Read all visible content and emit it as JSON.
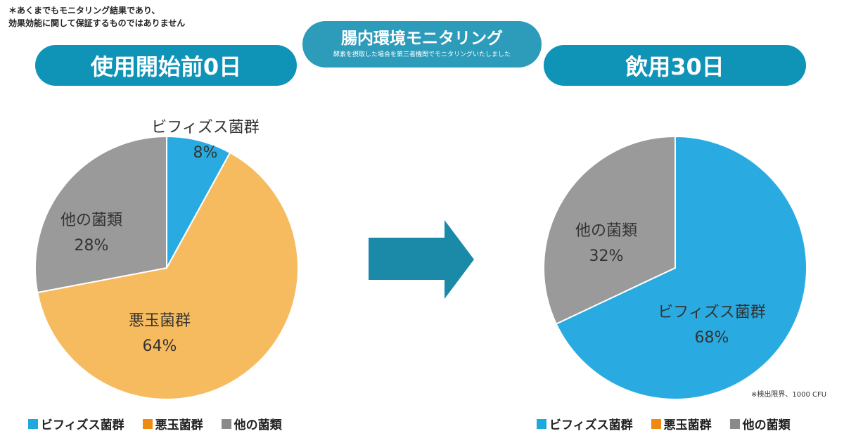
{
  "disclaimer": {
    "line1": "＊あくまでもモニタリング結果であり、",
    "line2": "効果効能に関して保証するものではありません"
  },
  "header": {
    "title": "腸内環境モニタリング",
    "subtitle": "酵素を摂取した場合を第三者機関でモニタリングいたしました"
  },
  "before": {
    "title": "使用開始前0日"
  },
  "after": {
    "title": "飲用30日"
  },
  "note": "※検出限界、1000 CFU",
  "legend": [
    {
      "label": "ビフィズス菌群",
      "color": "#1ea8dd"
    },
    {
      "label": "悪玉菌群",
      "color": "#f08a13"
    },
    {
      "label": "他の菌類",
      "color": "#8a8a8a"
    }
  ],
  "colors": {
    "accent": "#0f93b7",
    "bifido": "#29abe2",
    "bad": "#f7bb5f",
    "other": "#9a9a9a"
  },
  "chart_data": [
    {
      "type": "pie",
      "title": "使用開始前0日",
      "slices": [
        {
          "label": "ビフィズス菌群",
          "value": 8,
          "display": "8%"
        },
        {
          "label": "悪玉菌群",
          "value": 64,
          "display": "64%"
        },
        {
          "label": "他の菌類",
          "value": 28,
          "display": "28%"
        }
      ]
    },
    {
      "type": "pie",
      "title": "飲用30日",
      "slices": [
        {
          "label": "ビフィズス菌群",
          "value": 68,
          "display": "68%"
        },
        {
          "label": "他の菌類",
          "value": 32,
          "display": "32%"
        }
      ]
    }
  ]
}
